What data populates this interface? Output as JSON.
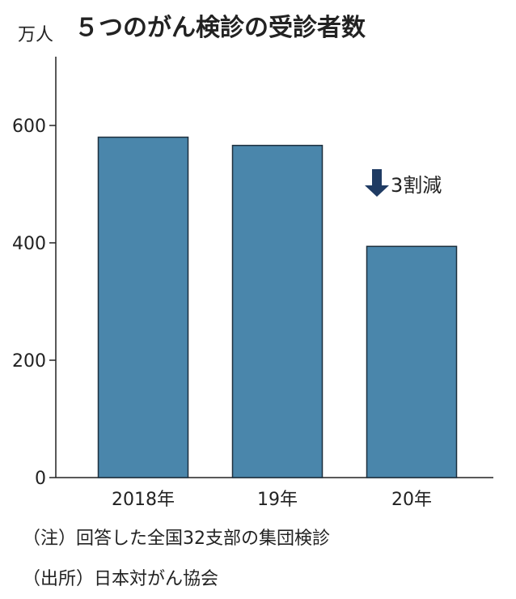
{
  "chart_data": {
    "type": "bar",
    "title": "５つのがん検診の受診者数",
    "unit_label": "万人",
    "categories": [
      "2018年",
      "19年",
      "20年"
    ],
    "values": [
      580,
      566,
      394
    ],
    "ylim": [
      0,
      700
    ],
    "yticks": [
      0,
      200,
      400,
      600
    ],
    "grid": false,
    "bar_color": "#4a86ab",
    "annotation": {
      "text": "3割減",
      "color": "#1f3b63"
    }
  },
  "notes": {
    "note": "（注）回答した全国32支部の集団検診",
    "source": "（出所）日本対がん協会"
  }
}
